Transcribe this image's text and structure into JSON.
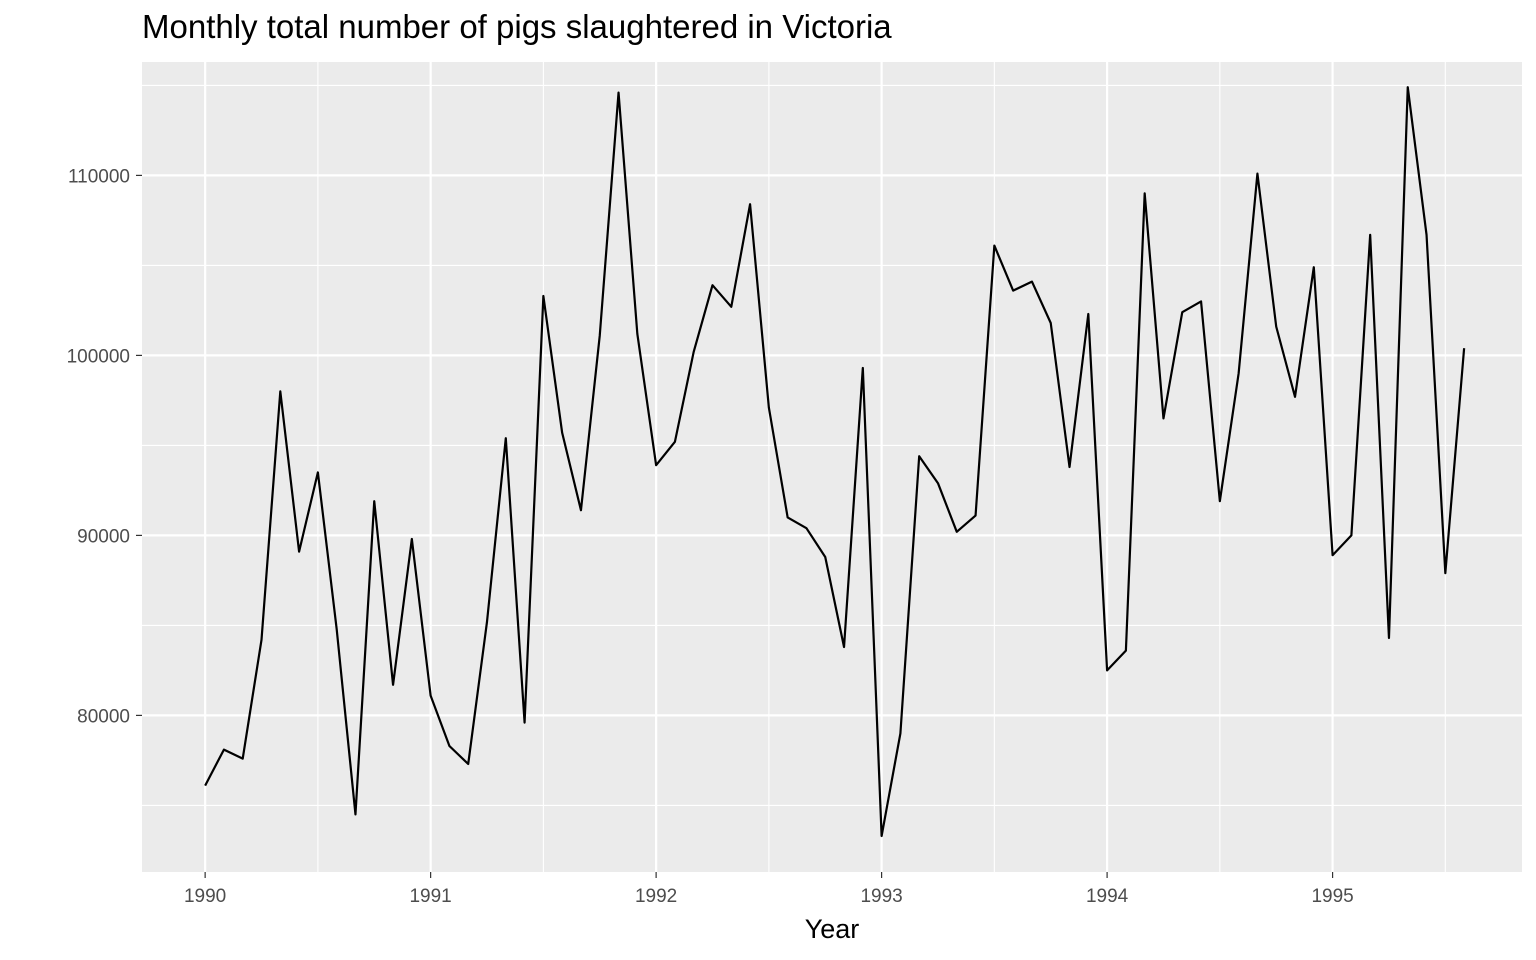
{
  "chart_data": {
    "type": "line",
    "title": "Monthly total number of pigs slaughtered in Victoria",
    "xlabel": "Year",
    "ylabel": "",
    "x_start": "1990-01",
    "frequency": "monthly",
    "xlim": [
      1989.72,
      1995.84
    ],
    "ylim": [
      71300,
      116300
    ],
    "x_ticks": [
      1990,
      1991,
      1992,
      1993,
      1994,
      1995
    ],
    "y_ticks": [
      80000,
      90000,
      100000,
      110000
    ],
    "grid": true,
    "background": "#ebebeb",
    "grid_color": "#ffffff",
    "line_color": "#000000",
    "series": [
      {
        "values": [
          76100,
          78100,
          77600,
          84200,
          98000,
          89100,
          93500,
          84800,
          74500,
          91900,
          81700,
          89800,
          81100,
          78300,
          77300,
          85200,
          95400,
          79600,
          103300,
          95700,
          91400,
          101100,
          114600,
          101200,
          93900,
          95200,
          100200,
          103900,
          102700,
          108400,
          97100,
          91000,
          90400,
          88800,
          83800,
          99300,
          73300,
          79000,
          94400,
          92900,
          90200,
          91100,
          106100,
          103600,
          104100,
          101800,
          93800,
          102300,
          82500,
          83600,
          109000,
          96500,
          102400,
          103000,
          91900,
          99000,
          110100,
          101600,
          97700,
          104900,
          88900,
          90000,
          106700,
          84300,
          114900,
          106700,
          87900,
          100400
        ]
      }
    ]
  }
}
